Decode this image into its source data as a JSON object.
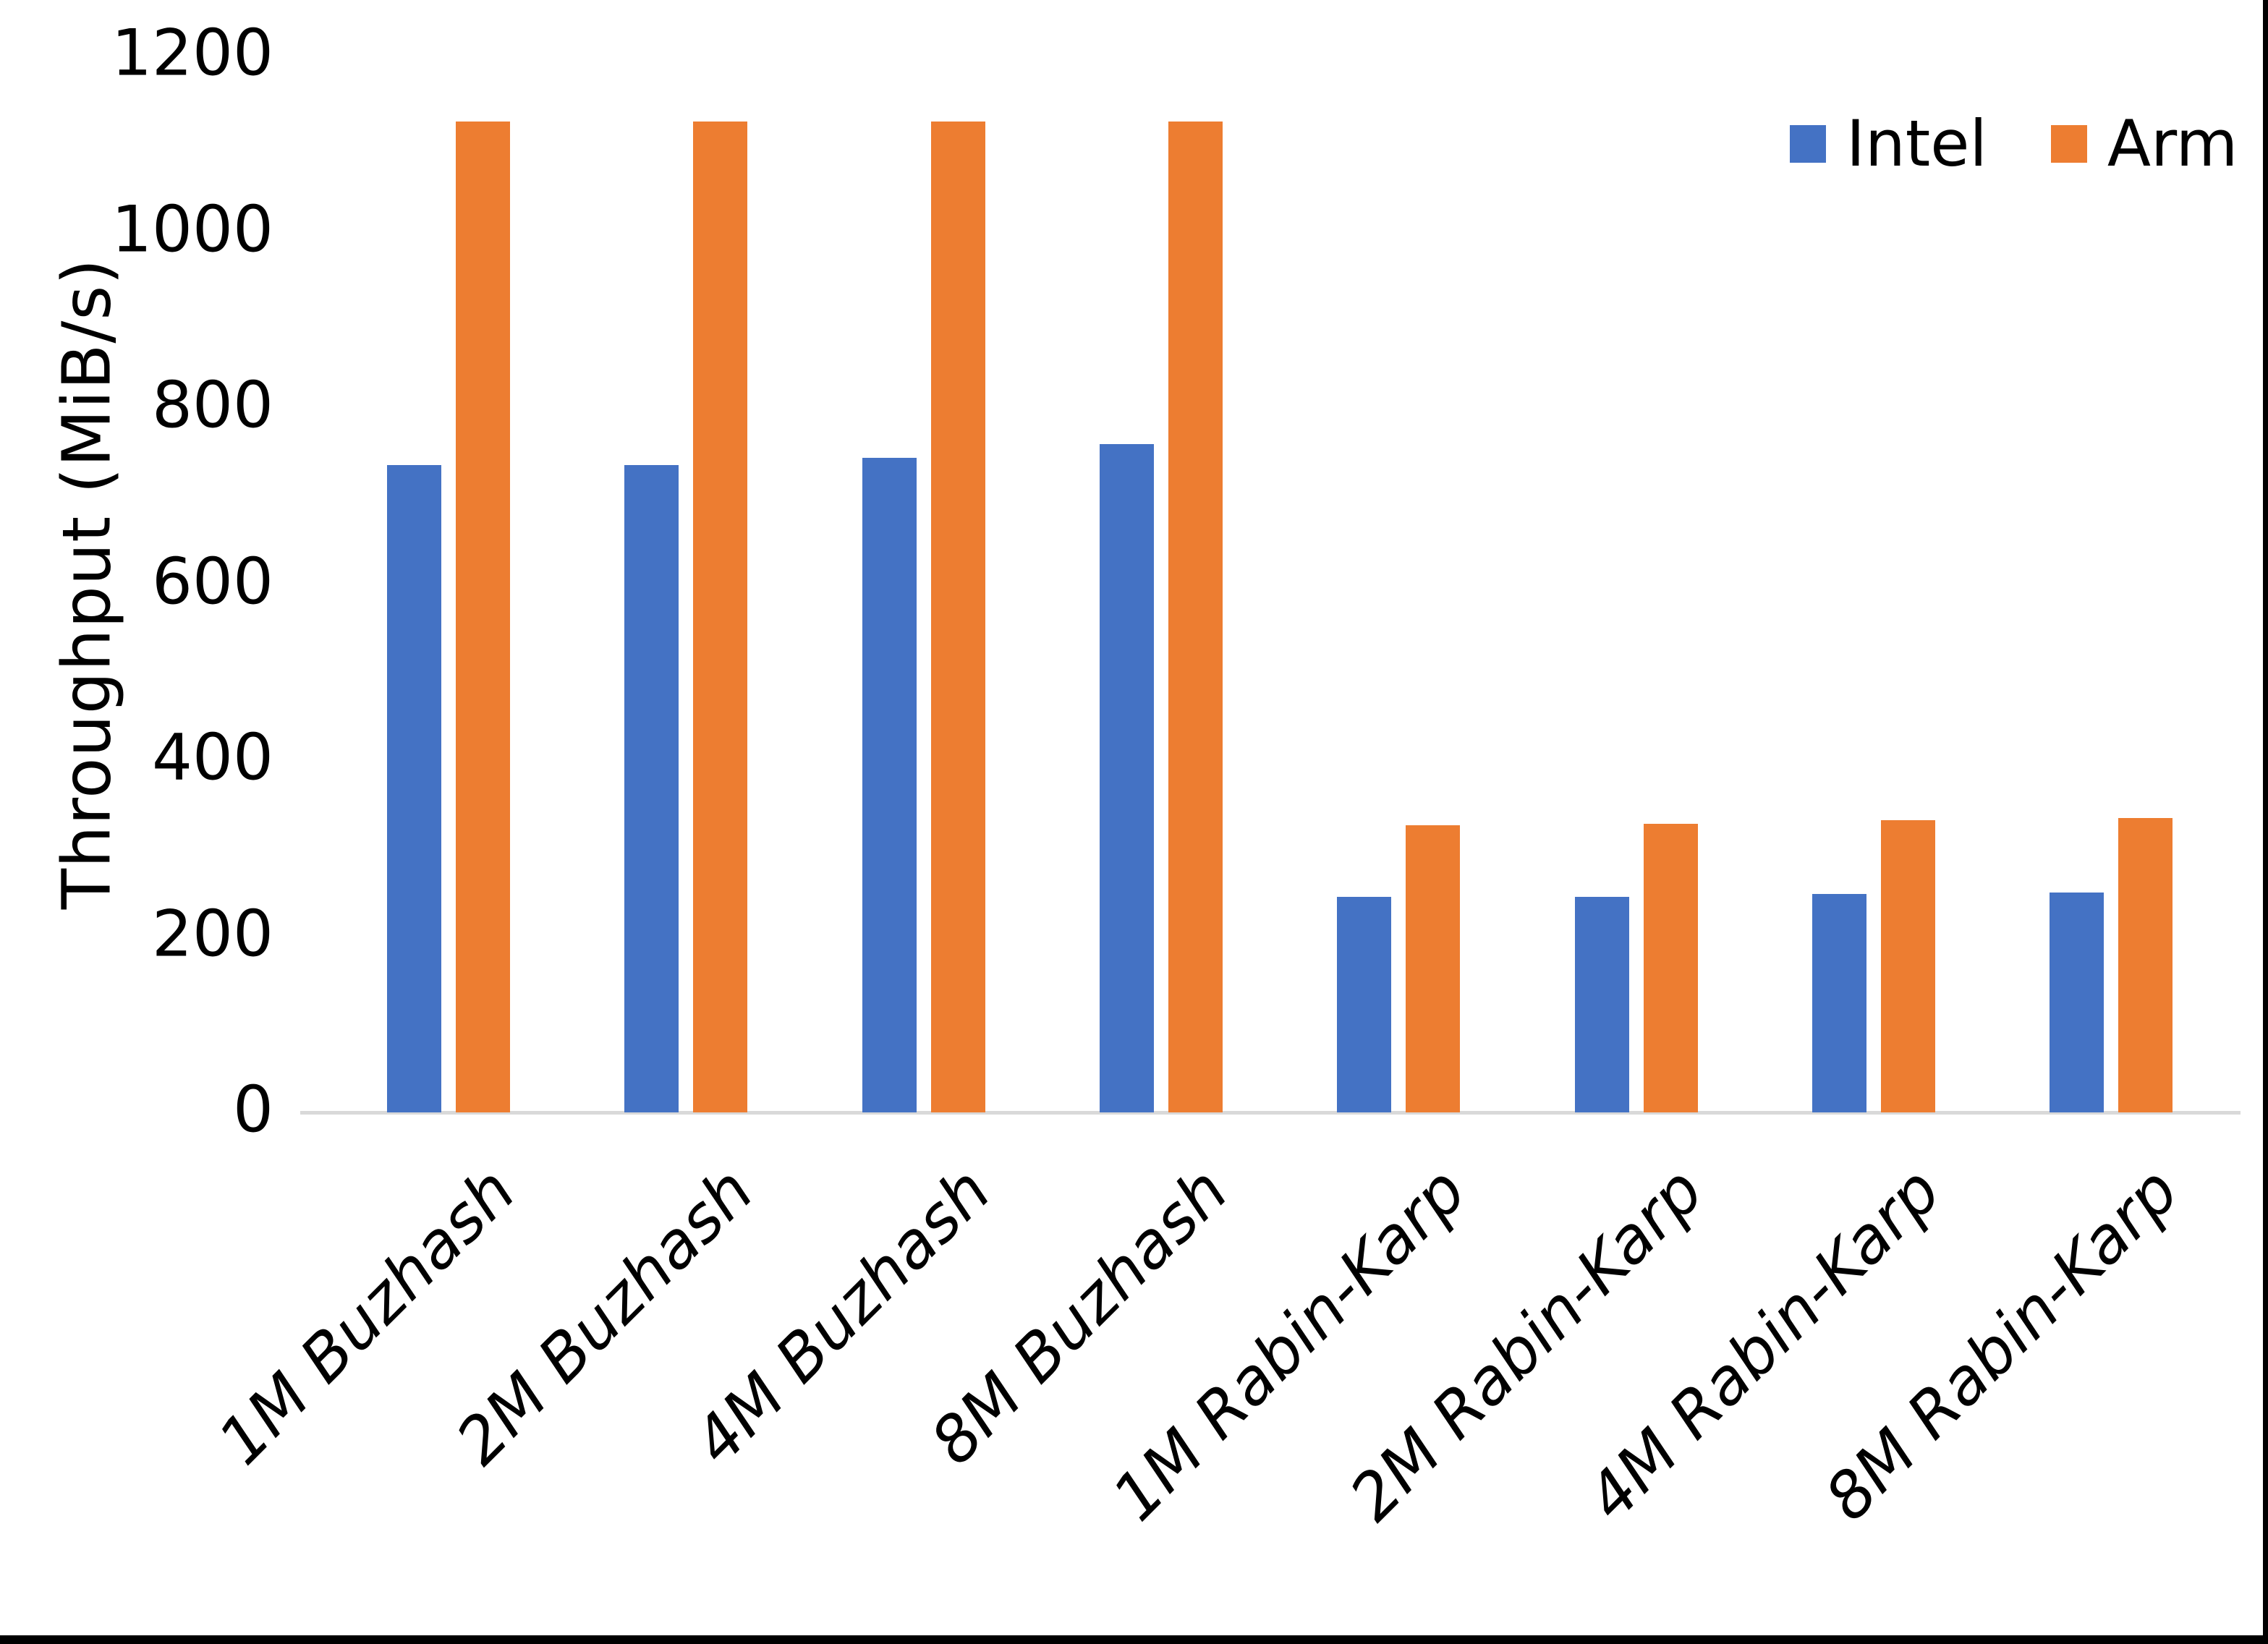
{
  "chart_data": {
    "type": "bar",
    "title": "",
    "xlabel": "",
    "ylabel": "Throughput (MiB/s)",
    "ylim": [
      0,
      1200
    ],
    "yticks": [
      0,
      200,
      400,
      600,
      800,
      1000,
      1200
    ],
    "grid": false,
    "legend_position": "top-right",
    "categories": [
      "1M Buzhash",
      "2M Buzhash",
      "4M Buzhash",
      "8M Buzhash",
      "1M Rabin-Karp",
      "2M Rabin-Karp",
      "4M Rabin-Karp",
      "8M Rabin-Karp"
    ],
    "series": [
      {
        "name": "Intel",
        "color": "#4472C4",
        "values": [
          735,
          735,
          743,
          759,
          245,
          245,
          248,
          250
        ]
      },
      {
        "name": "Arm",
        "color": "#ED7D31",
        "values": [
          1125,
          1125,
          1125,
          1125,
          326,
          328,
          332,
          334
        ]
      }
    ]
  },
  "frame": {
    "border_color": "#000000",
    "axis_line_color": "#d9d9d9",
    "text_color": "#000000"
  }
}
